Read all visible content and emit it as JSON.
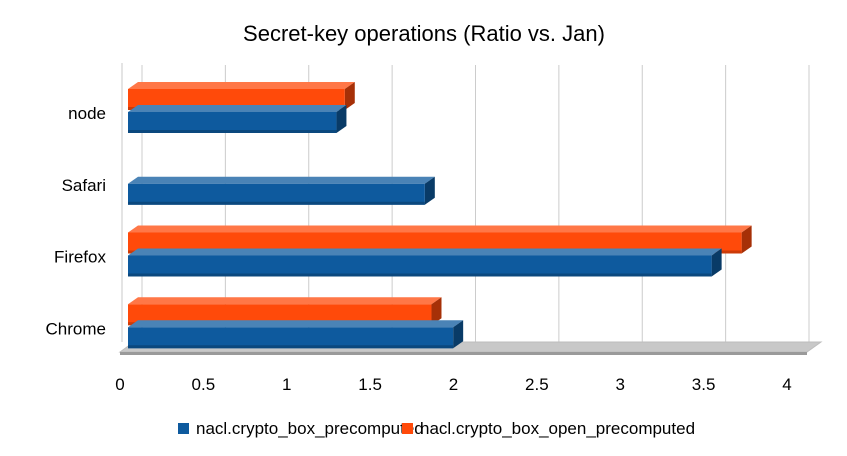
{
  "chart_data": {
    "type": "bar",
    "orientation": "horizontal",
    "title": "Secret-key operations (Ratio vs. Jan)",
    "categories": [
      "node",
      "Safari",
      "Firefox",
      "Chrome"
    ],
    "xlim": [
      0,
      4
    ],
    "xticks": [
      "0",
      "0.5",
      "1",
      "1.5",
      "2",
      "2.5",
      "3",
      "3.5",
      "4"
    ],
    "xtick_values": [
      0,
      0.5,
      1,
      1.5,
      2,
      2.5,
      3,
      3.5,
      4
    ],
    "grid": true,
    "legend_position": "bottom",
    "series": [
      {
        "name": "nacl.crypto_box_precomputed",
        "color": "#0e5a9e",
        "values": [
          1.25,
          1.78,
          3.5,
          1.95
        ]
      },
      {
        "name": "nacl.crypto_box_open_precomputed",
        "color": "#ff4a0a",
        "values": [
          1.3,
          null,
          3.68,
          1.82
        ]
      }
    ]
  }
}
